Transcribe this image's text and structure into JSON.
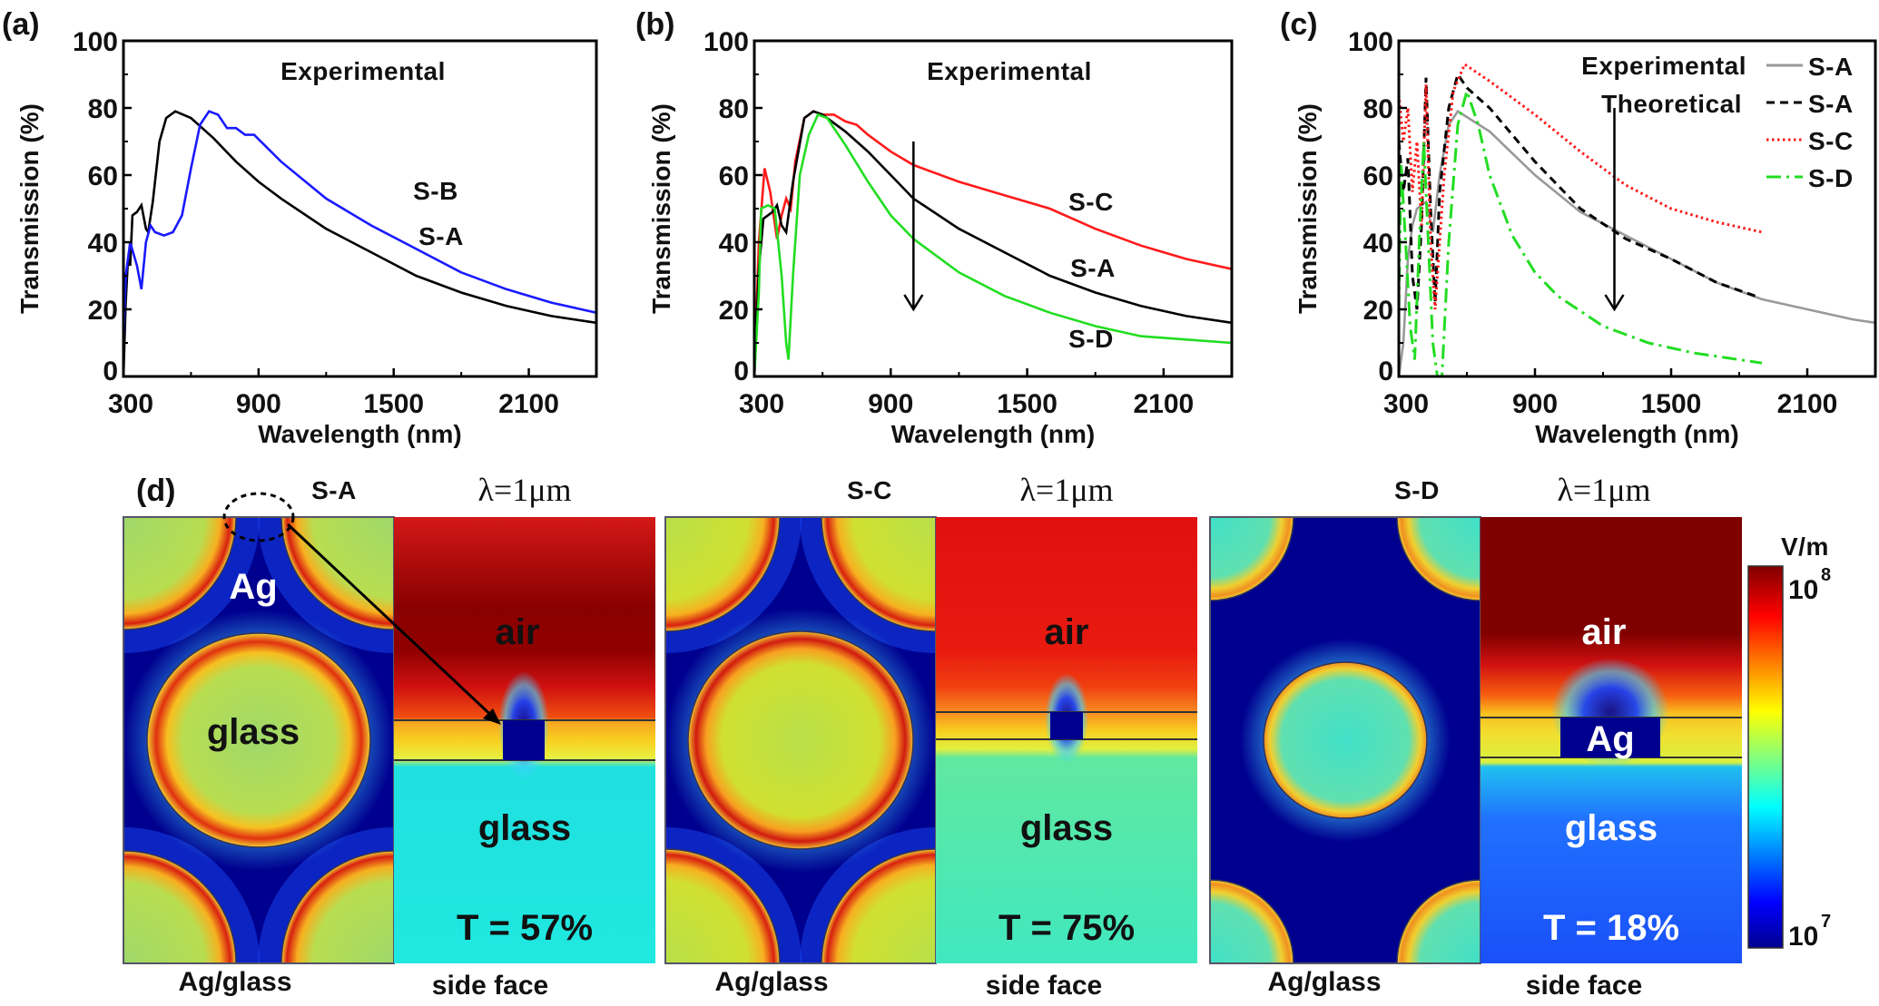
{
  "chart_data": [
    {
      "panel_label": "(a)",
      "type": "line",
      "xlabel": "Wavelength (nm)",
      "ylabel": "Transmission (%)",
      "xlim": [
        300,
        2400
      ],
      "ylim": [
        0,
        100
      ],
      "xticks": [
        300,
        900,
        1500,
        2100
      ],
      "yticks": [
        0,
        20,
        40,
        60,
        80,
        100
      ],
      "grid": false,
      "annotations": [
        "Experimental"
      ],
      "series": [
        {
          "name": "S-A",
          "color": "#000000",
          "style": "solid",
          "points": [
            [
              300,
              0
            ],
            [
              310,
              22
            ],
            [
              320,
              35
            ],
            [
              330,
              33
            ],
            [
              340,
              48
            ],
            [
              360,
              49
            ],
            [
              380,
              51
            ],
            [
              400,
              44
            ],
            [
              410,
              43
            ],
            [
              430,
              52
            ],
            [
              460,
              70
            ],
            [
              490,
              77
            ],
            [
              530,
              79
            ],
            [
              600,
              77
            ],
            [
              700,
              71
            ],
            [
              800,
              64
            ],
            [
              900,
              58
            ],
            [
              1000,
              53
            ],
            [
              1200,
              44
            ],
            [
              1400,
              37
            ],
            [
              1600,
              30
            ],
            [
              1800,
              25
            ],
            [
              2000,
              21
            ],
            [
              2200,
              18
            ],
            [
              2400,
              16
            ]
          ]
        },
        {
          "name": "S-B",
          "color": "#1a1aff",
          "style": "solid",
          "points": [
            [
              300,
              10
            ],
            [
              310,
              30
            ],
            [
              330,
              40
            ],
            [
              360,
              33
            ],
            [
              380,
              26
            ],
            [
              400,
              40
            ],
            [
              420,
              45
            ],
            [
              440,
              43
            ],
            [
              480,
              42
            ],
            [
              520,
              43
            ],
            [
              560,
              48
            ],
            [
              600,
              62
            ],
            [
              640,
              75
            ],
            [
              680,
              79
            ],
            [
              720,
              78
            ],
            [
              760,
              74
            ],
            [
              800,
              74
            ],
            [
              840,
              72
            ],
            [
              880,
              72
            ],
            [
              1000,
              64
            ],
            [
              1200,
              53
            ],
            [
              1400,
              45
            ],
            [
              1600,
              38
            ],
            [
              1800,
              31
            ],
            [
              2000,
              26
            ],
            [
              2200,
              22
            ],
            [
              2400,
              19
            ]
          ]
        }
      ]
    },
    {
      "panel_label": "(b)",
      "type": "line",
      "xlabel": "Wavelength (nm)",
      "ylabel": "Transmission (%)",
      "xlim": [
        300,
        2400
      ],
      "ylim": [
        0,
        100
      ],
      "xticks": [
        300,
        900,
        1500,
        2100
      ],
      "yticks": [
        0,
        20,
        40,
        60,
        80,
        100
      ],
      "grid": false,
      "annotations": [
        "Experimental"
      ],
      "arrow": {
        "x": 1000,
        "y_from": 70,
        "y_to": 20
      },
      "series": [
        {
          "name": "S-C",
          "color": "#ff1a1a",
          "style": "solid",
          "points": [
            [
              300,
              0
            ],
            [
              320,
              40
            ],
            [
              345,
              62
            ],
            [
              370,
              55
            ],
            [
              400,
              41
            ],
            [
              420,
              48
            ],
            [
              440,
              53
            ],
            [
              460,
              50
            ],
            [
              480,
              64
            ],
            [
              520,
              77
            ],
            [
              560,
              79
            ],
            [
              600,
              78
            ],
            [
              650,
              78
            ],
            [
              700,
              76
            ],
            [
              750,
              75
            ],
            [
              800,
              72
            ],
            [
              900,
              67
            ],
            [
              1000,
              63
            ],
            [
              1200,
              58
            ],
            [
              1400,
              54
            ],
            [
              1600,
              50
            ],
            [
              1800,
              44
            ],
            [
              2000,
              39
            ],
            [
              2200,
              35
            ],
            [
              2400,
              32
            ]
          ]
        },
        {
          "name": "S-A",
          "color": "#000000",
          "style": "solid",
          "points": [
            [
              300,
              0
            ],
            [
              320,
              32
            ],
            [
              340,
              47
            ],
            [
              380,
              49
            ],
            [
              400,
              51
            ],
            [
              420,
              45
            ],
            [
              440,
              43
            ],
            [
              470,
              58
            ],
            [
              520,
              77
            ],
            [
              560,
              79
            ],
            [
              600,
              78
            ],
            [
              700,
              73
            ],
            [
              800,
              67
            ],
            [
              900,
              60
            ],
            [
              1000,
              53
            ],
            [
              1200,
              44
            ],
            [
              1400,
              37
            ],
            [
              1600,
              30
            ],
            [
              1800,
              25
            ],
            [
              2000,
              21
            ],
            [
              2200,
              18
            ],
            [
              2400,
              16
            ]
          ]
        },
        {
          "name": "S-D",
          "color": "#22dd22",
          "style": "solid",
          "points": [
            [
              300,
              0
            ],
            [
              320,
              25
            ],
            [
              330,
              50
            ],
            [
              360,
              51
            ],
            [
              390,
              50
            ],
            [
              420,
              30
            ],
            [
              440,
              10
            ],
            [
              450,
              5
            ],
            [
              470,
              30
            ],
            [
              500,
              60
            ],
            [
              540,
              72
            ],
            [
              580,
              78
            ],
            [
              620,
              77
            ],
            [
              700,
              69
            ],
            [
              800,
              58
            ],
            [
              900,
              48
            ],
            [
              1000,
              41
            ],
            [
              1200,
              31
            ],
            [
              1400,
              24
            ],
            [
              1600,
              19
            ],
            [
              1800,
              15
            ],
            [
              2000,
              12
            ],
            [
              2200,
              11
            ],
            [
              2400,
              10
            ]
          ]
        }
      ]
    },
    {
      "panel_label": "(c)",
      "type": "line",
      "xlabel": "Wavelength (nm)",
      "ylabel": "Transmission (%)",
      "xlim": [
        300,
        2400
      ],
      "ylim": [
        0,
        100
      ],
      "xticks": [
        300,
        900,
        1500,
        2100
      ],
      "yticks": [
        0,
        20,
        40,
        60,
        80,
        100
      ],
      "grid": false,
      "annotations": [
        "Experimental",
        "Theoretical"
      ],
      "legend_position": "top-right",
      "arrow": {
        "x": 1250,
        "y_from": 80,
        "y_to": 20
      },
      "series": [
        {
          "name": "S-A",
          "color": "#999999",
          "style": "solid",
          "points": [
            [
              300,
              0
            ],
            [
              320,
              10
            ],
            [
              340,
              35
            ],
            [
              360,
              45
            ],
            [
              380,
              50
            ],
            [
              420,
              52
            ],
            [
              450,
              43
            ],
            [
              480,
              60
            ],
            [
              520,
              75
            ],
            [
              560,
              79
            ],
            [
              700,
              73
            ],
            [
              900,
              60
            ],
            [
              1100,
              49
            ],
            [
              1300,
              42
            ],
            [
              1500,
              35
            ],
            [
              1700,
              28
            ],
            [
              1900,
              23
            ],
            [
              2100,
              20
            ],
            [
              2300,
              17
            ],
            [
              2400,
              16
            ]
          ]
        },
        {
          "name": "S-A",
          "color": "#000000",
          "style": "dashed",
          "points": [
            [
              300,
              70
            ],
            [
              320,
              55
            ],
            [
              340,
              65
            ],
            [
              360,
              30
            ],
            [
              380,
              20
            ],
            [
              400,
              45
            ],
            [
              420,
              89
            ],
            [
              440,
              50
            ],
            [
              460,
              22
            ],
            [
              480,
              55
            ],
            [
              520,
              80
            ],
            [
              560,
              90
            ],
            [
              600,
              86
            ],
            [
              700,
              80
            ],
            [
              900,
              64
            ],
            [
              1100,
              50
            ],
            [
              1300,
              41
            ],
            [
              1500,
              35
            ],
            [
              1700,
              28
            ],
            [
              1870,
              24
            ]
          ]
        },
        {
          "name": "S-C",
          "color": "#ff1a1a",
          "style": "dotted",
          "points": [
            [
              300,
              84
            ],
            [
              320,
              70
            ],
            [
              340,
              80
            ],
            [
              360,
              55
            ],
            [
              380,
              70
            ],
            [
              400,
              45
            ],
            [
              420,
              87
            ],
            [
              440,
              40
            ],
            [
              460,
              20
            ],
            [
              480,
              40
            ],
            [
              500,
              60
            ],
            [
              540,
              85
            ],
            [
              590,
              93
            ],
            [
              700,
              88
            ],
            [
              900,
              78
            ],
            [
              1100,
              67
            ],
            [
              1300,
              57
            ],
            [
              1500,
              50
            ],
            [
              1700,
              46
            ],
            [
              1900,
              43
            ]
          ]
        },
        {
          "name": "S-D",
          "color": "#22dd22",
          "style": "dashdot",
          "points": [
            [
              300,
              20
            ],
            [
              310,
              63
            ],
            [
              330,
              40
            ],
            [
              350,
              15
            ],
            [
              370,
              5
            ],
            [
              390,
              40
            ],
            [
              410,
              70
            ],
            [
              430,
              40
            ],
            [
              450,
              10
            ],
            [
              470,
              0
            ],
            [
              490,
              0
            ],
            [
              520,
              40
            ],
            [
              560,
              75
            ],
            [
              600,
              85
            ],
            [
              650,
              75
            ],
            [
              700,
              60
            ],
            [
              800,
              42
            ],
            [
              900,
              31
            ],
            [
              1000,
              24
            ],
            [
              1200,
              15
            ],
            [
              1400,
              10
            ],
            [
              1600,
              7
            ],
            [
              1800,
              5
            ],
            [
              1900,
              4
            ]
          ]
        }
      ]
    }
  ],
  "figure_d": {
    "panel_label": "(d)",
    "colorbar": {
      "unit": "V/m",
      "max_label": "10",
      "max_exp": "8",
      "min_label": "10",
      "min_exp": "7",
      "colormap": "jet"
    },
    "panels": [
      {
        "sample": "S-A",
        "wavelength": "λ=1μm",
        "metal_label": "Ag",
        "hole_label": "glass",
        "air_label": "air",
        "substrate_label": "glass",
        "transmission": "T = 57%",
        "top_caption": "Ag/glass",
        "side_caption": "side face"
      },
      {
        "sample": "S-C",
        "wavelength": "λ=1μm",
        "air_label": "air",
        "substrate_label": "glass",
        "transmission": "T = 75%",
        "top_caption": "Ag/glass",
        "side_caption": "side face"
      },
      {
        "sample": "S-D",
        "wavelength": "λ=1μm",
        "air_label": "air",
        "block_label": "Ag",
        "substrate_label": "glass",
        "transmission": "T = 18%",
        "top_caption": "Ag/glass",
        "side_caption": "side face"
      }
    ]
  }
}
